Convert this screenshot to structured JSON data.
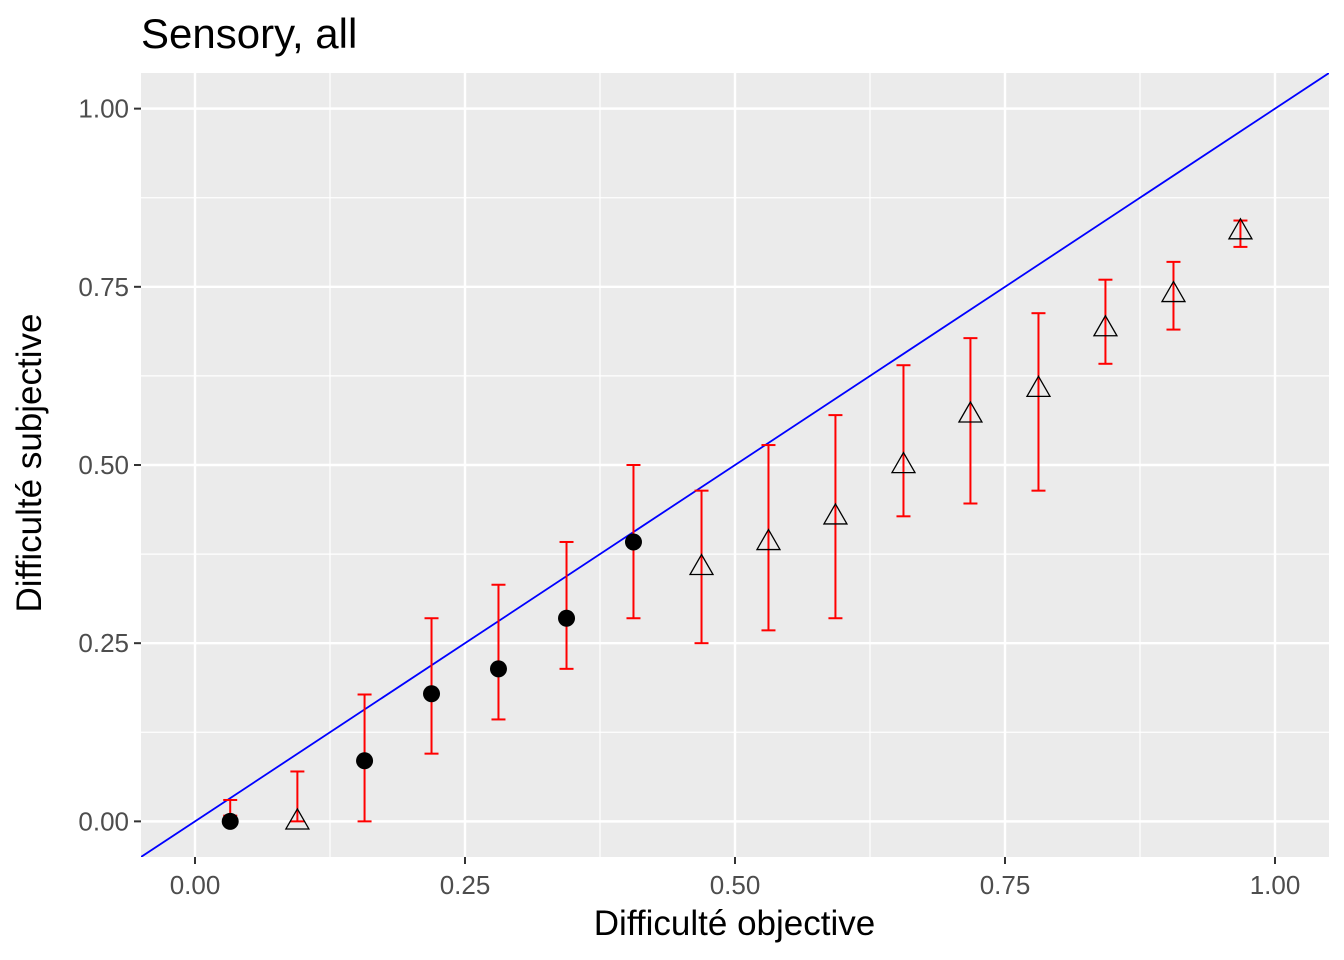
{
  "chart_data": {
    "type": "scatter",
    "title": "Sensory, all",
    "xlabel": "Difficulté objective",
    "ylabel": "Difficulté subjective",
    "xlim": [
      -0.05,
      1.05
    ],
    "ylim": [
      -0.05,
      1.05
    ],
    "x_ticks": [
      0.0,
      0.25,
      0.5,
      0.75,
      1.0
    ],
    "x_tick_labels": [
      "0.00",
      "0.25",
      "0.50",
      "0.75",
      "1.00"
    ],
    "y_ticks": [
      0.0,
      0.25,
      0.5,
      0.75,
      1.0
    ],
    "y_tick_labels": [
      "0.00",
      "0.25",
      "0.50",
      "0.75",
      "1.00"
    ],
    "grid": true,
    "reference_line": {
      "slope": 1,
      "intercept": 0,
      "color": "#0000ff"
    },
    "error_bar_color": "#ff0000",
    "points": [
      {
        "x": 0.0326,
        "y": 0.0,
        "lo": 0.008,
        "hi": 0.03,
        "shape": "circle"
      },
      {
        "x": 0.0948,
        "y": 0.0,
        "lo": 0.0,
        "hi": 0.07,
        "shape": "triangle"
      },
      {
        "x": 0.157,
        "y": 0.085,
        "lo": 0.0,
        "hi": 0.178,
        "shape": "circle"
      },
      {
        "x": 0.219,
        "y": 0.179,
        "lo": 0.095,
        "hi": 0.285,
        "shape": "circle"
      },
      {
        "x": 0.281,
        "y": 0.214,
        "lo": 0.143,
        "hi": 0.332,
        "shape": "circle"
      },
      {
        "x": 0.344,
        "y": 0.285,
        "lo": 0.214,
        "hi": 0.392,
        "shape": "circle"
      },
      {
        "x": 0.406,
        "y": 0.392,
        "lo": 0.285,
        "hi": 0.5,
        "shape": "circle"
      },
      {
        "x": 0.469,
        "y": 0.357,
        "lo": 0.25,
        "hi": 0.464,
        "shape": "triangle"
      },
      {
        "x": 0.531,
        "y": 0.392,
        "lo": 0.268,
        "hi": 0.528,
        "shape": "triangle"
      },
      {
        "x": 0.593,
        "y": 0.428,
        "lo": 0.285,
        "hi": 0.57,
        "shape": "triangle"
      },
      {
        "x": 0.656,
        "y": 0.5,
        "lo": 0.428,
        "hi": 0.64,
        "shape": "triangle"
      },
      {
        "x": 0.718,
        "y": 0.571,
        "lo": 0.446,
        "hi": 0.678,
        "shape": "triangle"
      },
      {
        "x": 0.781,
        "y": 0.607,
        "lo": 0.464,
        "hi": 0.713,
        "shape": "triangle"
      },
      {
        "x": 0.843,
        "y": 0.692,
        "lo": 0.642,
        "hi": 0.76,
        "shape": "triangle"
      },
      {
        "x": 0.906,
        "y": 0.74,
        "lo": 0.69,
        "hi": 0.785,
        "shape": "triangle"
      },
      {
        "x": 0.968,
        "y": 0.828,
        "lo": 0.806,
        "hi": 0.843,
        "shape": "triangle"
      }
    ]
  }
}
